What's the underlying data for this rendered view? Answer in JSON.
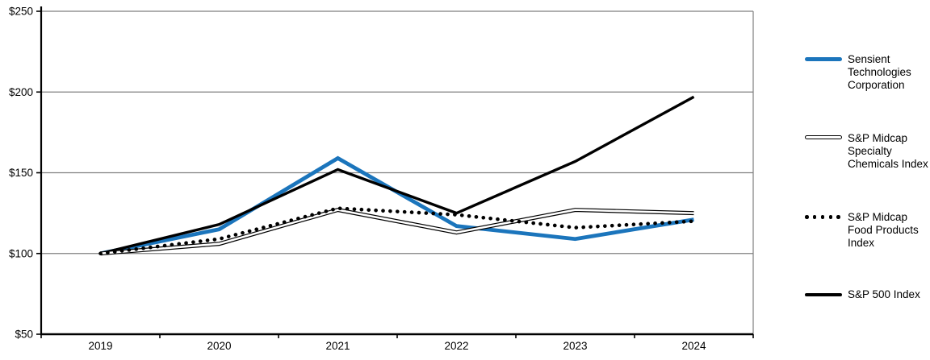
{
  "chart_data": {
    "type": "line",
    "categories": [
      "2019",
      "2020",
      "2021",
      "2022",
      "2023",
      "2024"
    ],
    "series": [
      {
        "key": "sensient",
        "name": "Sensient Technologies Corporation",
        "values": [
          100,
          115,
          159,
          117,
          109,
          121
        ],
        "color": "#1B75BC",
        "style": "solid-thick"
      },
      {
        "key": "chemicals",
        "name": "S&P Midcap Specialty Chemicals Index",
        "values": [
          100,
          106,
          127,
          113,
          127,
          125
        ],
        "color": "#000000",
        "style": "double-outline"
      },
      {
        "key": "food",
        "name": "S&P Midcap Food Products Index",
        "values": [
          100,
          109,
          128,
          124,
          116,
          120
        ],
        "color": "#000000",
        "style": "dotted"
      },
      {
        "key": "sp500",
        "name": "S&P 500 Index",
        "values": [
          100,
          118,
          152,
          125,
          157,
          197
        ],
        "color": "#000000",
        "style": "solid"
      }
    ],
    "y_ticks": [
      "$50",
      "$100",
      "$150",
      "$200",
      "$250"
    ],
    "ylim": [
      50,
      250
    ],
    "y_step": 50,
    "grid": true,
    "gridline_color": "#7F7F7F",
    "axis_color": "#000000",
    "legend_position": "right"
  }
}
